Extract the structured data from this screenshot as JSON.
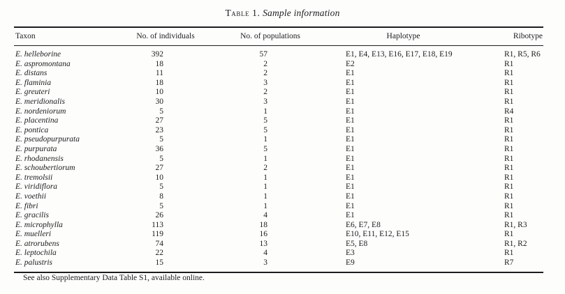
{
  "title": {
    "table_label": "Table 1.",
    "caption": "Sample information"
  },
  "table": {
    "columns": [
      {
        "key": "taxon",
        "label": "Taxon"
      },
      {
        "key": "individuals",
        "label": "No. of individuals"
      },
      {
        "key": "populations",
        "label": "No. of populations"
      },
      {
        "key": "haplotype",
        "label": "Haplotype"
      },
      {
        "key": "ribotype",
        "label": "Ribotype"
      }
    ],
    "rows": [
      {
        "taxon": "E. helleborine",
        "individuals": "392",
        "populations": "57",
        "haplotype": "E1, E4, E13, E16, E17, E18, E19",
        "ribotype": "R1, R5, R6"
      },
      {
        "taxon": "E. aspromontana",
        "individuals": "18",
        "populations": "2",
        "haplotype": "E2",
        "ribotype": "R1"
      },
      {
        "taxon": "E. distans",
        "individuals": "11",
        "populations": "2",
        "haplotype": "E1",
        "ribotype": "R1"
      },
      {
        "taxon": "E. flaminia",
        "individuals": "18",
        "populations": "3",
        "haplotype": "E1",
        "ribotype": "R1"
      },
      {
        "taxon": "E. greuteri",
        "individuals": "10",
        "populations": "2",
        "haplotype": "E1",
        "ribotype": "R1"
      },
      {
        "taxon": "E. meridionalis",
        "individuals": "30",
        "populations": "3",
        "haplotype": "E1",
        "ribotype": "R1"
      },
      {
        "taxon": "E. nordeniorum",
        "individuals": "5",
        "populations": "1",
        "haplotype": "E1",
        "ribotype": "R4"
      },
      {
        "taxon": "E. placentina",
        "individuals": "27",
        "populations": "5",
        "haplotype": "E1",
        "ribotype": "R1"
      },
      {
        "taxon": "E. pontica",
        "individuals": "23",
        "populations": "5",
        "haplotype": "E1",
        "ribotype": "R1"
      },
      {
        "taxon": "E. pseudopurpurata",
        "individuals": "5",
        "populations": "1",
        "haplotype": "E1",
        "ribotype": "R1"
      },
      {
        "taxon": "E. purpurata",
        "individuals": "36",
        "populations": "5",
        "haplotype": "E1",
        "ribotype": "R1"
      },
      {
        "taxon": "E. rhodanensis",
        "individuals": "5",
        "populations": "1",
        "haplotype": "E1",
        "ribotype": "R1"
      },
      {
        "taxon": "E. schoubertiorum",
        "individuals": "27",
        "populations": "2",
        "haplotype": "E1",
        "ribotype": "R1"
      },
      {
        "taxon": "E. tremolsii",
        "individuals": "10",
        "populations": "1",
        "haplotype": "E1",
        "ribotype": "R1"
      },
      {
        "taxon": "E. viridiflora",
        "individuals": "5",
        "populations": "1",
        "haplotype": "E1",
        "ribotype": "R1"
      },
      {
        "taxon": "E. voethii",
        "individuals": "8",
        "populations": "1",
        "haplotype": "E1",
        "ribotype": "R1"
      },
      {
        "taxon": "E. fibri",
        "individuals": "5",
        "populations": "1",
        "haplotype": "E1",
        "ribotype": "R1"
      },
      {
        "taxon": "E. gracilis",
        "individuals": "26",
        "populations": "4",
        "haplotype": "E1",
        "ribotype": "R1"
      },
      {
        "taxon": "E. microphylla",
        "individuals": "113",
        "populations": "18",
        "haplotype": "E6, E7, E8",
        "ribotype": "R1, R3"
      },
      {
        "taxon": "E. muelleri",
        "individuals": "119",
        "populations": "16",
        "haplotype": "E10, E11, E12, E15",
        "ribotype": "R1"
      },
      {
        "taxon": "E. atrorubens",
        "individuals": "74",
        "populations": "13",
        "haplotype": "E5, E8",
        "ribotype": "R1, R2"
      },
      {
        "taxon": "E. leptochila",
        "individuals": "22",
        "populations": "4",
        "haplotype": "E3",
        "ribotype": "R1"
      },
      {
        "taxon": "E. palustris",
        "individuals": "15",
        "populations": "3",
        "haplotype": "E9",
        "ribotype": "R7"
      }
    ]
  },
  "footnote": "See also Supplementary Data Table S1, available online.",
  "colors": {
    "text": "#1c1c1c",
    "rule": "#1c1c1c",
    "background": "#fdfdfc"
  }
}
